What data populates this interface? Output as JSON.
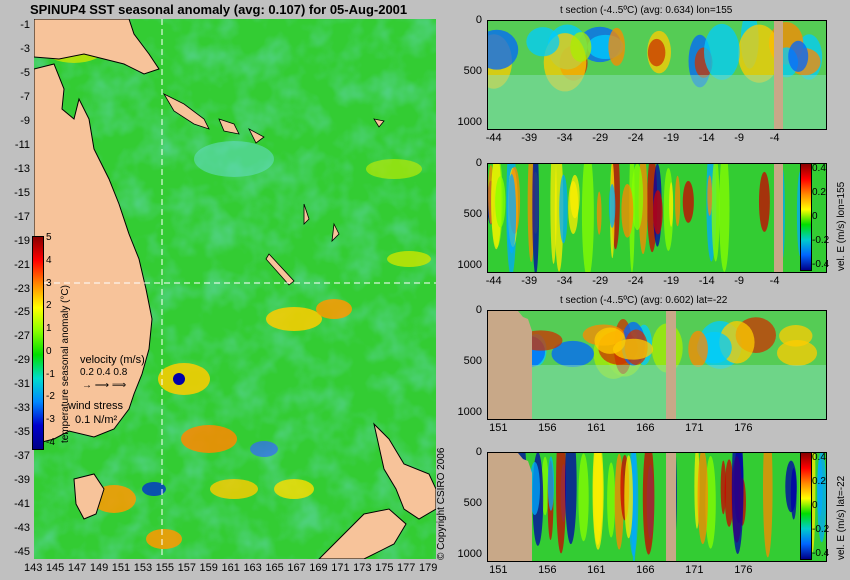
{
  "header": {
    "main_title": "SPINUP4 SST seasonal anomaly (avg: 0.107) for 05-Aug-2001",
    "copyright": "© Copyright CSIRO 2006"
  },
  "map": {
    "y_ticks": [
      "-1",
      "-3",
      "-5",
      "-7",
      "-9",
      "-11",
      "-13",
      "-15",
      "-17",
      "-19",
      "-21",
      "-23",
      "-25",
      "-27",
      "-29",
      "-31",
      "-33",
      "-35",
      "-37",
      "-39",
      "-41",
      "-43",
      "-45"
    ],
    "x_ticks": [
      "143",
      "145",
      "147",
      "149",
      "151",
      "153",
      "155",
      "157",
      "159",
      "161",
      "163",
      "165",
      "167",
      "169",
      "171",
      "173",
      "175",
      "177",
      "179"
    ],
    "colorbar_label": "temperature seasonal anomaly (°C)",
    "colorbar_ticks": [
      "5",
      "4",
      "3",
      "2",
      "1",
      "0",
      "-1",
      "-2",
      "-3",
      "-4"
    ],
    "velocity_label": "velocity (m/s)",
    "velocity_scale": "0.2 0.4 0.8",
    "wind_label": "wind stress",
    "wind_scale": "0.1 N/m²",
    "colors": {
      "land": "#f7c39a",
      "ocean": "#33cc33",
      "coast": "#000000",
      "dashed_line": "#ffffff"
    }
  },
  "panels": [
    {
      "title": "t section (-4..5ºC) (avg: 0.634) lon=155",
      "y_ticks": [
        "0",
        "500",
        "1000"
      ],
      "x_ticks": [
        "-44",
        "-39",
        "-34",
        "-29",
        "-24",
        "-19",
        "-14",
        "-9",
        "-4"
      ],
      "side_label": "",
      "colorbar_ticks": []
    },
    {
      "title": "",
      "y_ticks": [
        "0",
        "500",
        "1000"
      ],
      "x_ticks": [
        "-44",
        "-39",
        "-34",
        "-29",
        "-24",
        "-19",
        "-14",
        "-9",
        "-4"
      ],
      "side_label": "vel. E (m/s) lon=155",
      "colorbar_ticks": [
        "0.4",
        "0.2",
        "0",
        "-0.2",
        "-0.4"
      ]
    },
    {
      "title": "t section (-4..5ºC) (avg: 0.602) lat=-22",
      "y_ticks": [
        "0",
        "500",
        "1000"
      ],
      "x_ticks": [
        "151",
        "156",
        "161",
        "166",
        "171",
        "176"
      ],
      "side_label": "",
      "colorbar_ticks": []
    },
    {
      "title": "",
      "y_ticks": [
        "0",
        "500",
        "1000"
      ],
      "x_ticks": [
        "151",
        "156",
        "161",
        "166",
        "171",
        "176"
      ],
      "side_label": "vel. E (m/s) lat=-22",
      "colorbar_ticks": [
        "0.4",
        "0.2",
        "0",
        "-0.2",
        "-0.4"
      ]
    }
  ]
}
